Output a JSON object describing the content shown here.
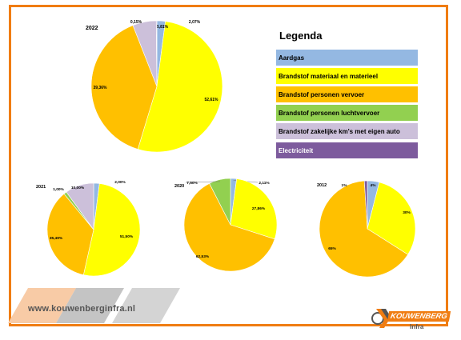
{
  "legend": {
    "title": "Legenda",
    "items": [
      {
        "label": "Aardgas",
        "color": "#94b8e2",
        "dark": false
      },
      {
        "label": "Brandstof materiaal en materieel",
        "color": "#ffff00",
        "dark": false
      },
      {
        "label": "Brandstof personen vervoer",
        "color": "#ffc000",
        "dark": false
      },
      {
        "label": "Brandstof personen luchtvervoer",
        "color": "#92d050",
        "dark": false
      },
      {
        "label": "Brandstof zakelijke km's met eigen auto",
        "color": "#ccc0da",
        "dark": false
      },
      {
        "label": "Electriciteit",
        "color": "#7d5b9d",
        "dark": true
      }
    ]
  },
  "footer": {
    "website": "www.kouwenberginfra.nl",
    "logo_name": "KOUWENBERG",
    "logo_sub": "Infra",
    "logo_icon": "k-logo-icon"
  },
  "chart_data": [
    {
      "type": "pie",
      "title": "2022",
      "slices": [
        {
          "category": "Aardgas",
          "value": 2.07,
          "label": "2,07%"
        },
        {
          "category": "Brandstof materiaal en materieel",
          "value": 52.61,
          "label": "52,61%"
        },
        {
          "category": "Brandstof personen vervoer",
          "value": 39.36,
          "label": "39,36%"
        },
        {
          "category": "Brandstof zakelijke km's met eigen auto",
          "value": 5.81,
          "label": "5,81%"
        },
        {
          "category": "Electriciteit",
          "value": 0.15,
          "label": "0,15%"
        }
      ]
    },
    {
      "type": "pie",
      "title": "2021",
      "slices": [
        {
          "category": "Aardgas",
          "value": 2.0,
          "label": "2,00%"
        },
        {
          "category": "Brandstof materiaal en materieel",
          "value": 51.5,
          "label": "51,50%"
        },
        {
          "category": "Brandstof personen vervoer",
          "value": 35.49,
          "label": "35,49%"
        },
        {
          "category": "Brandstof personen luchtvervoer",
          "value": 1.0,
          "label": "1,00%"
        },
        {
          "category": "Brandstof zakelijke km's met eigen auto",
          "value": 10.0,
          "label": "10,00%"
        }
      ]
    },
    {
      "type": "pie",
      "title": "2020",
      "slices": [
        {
          "category": "Aardgas",
          "value": 2.11,
          "label": "2,11%"
        },
        {
          "category": "Brandstof materiaal en materieel",
          "value": 27.86,
          "label": "27,86%"
        },
        {
          "category": "Brandstof personen vervoer",
          "value": 62.53,
          "label": "62,53%"
        },
        {
          "category": "Brandstof personen luchtvervoer",
          "value": 7.5,
          "label": "7,50%"
        }
      ]
    },
    {
      "type": "pie",
      "title": "2012",
      "slices": [
        {
          "category": "Aardgas",
          "value": 4,
          "label": "4%"
        },
        {
          "category": "Brandstof materiaal en materieel",
          "value": 30,
          "label": "30%"
        },
        {
          "category": "Brandstof personen vervoer",
          "value": 65,
          "label": "65%"
        },
        {
          "category": "Electriciteit",
          "value": 1,
          "label": "1%"
        }
      ]
    }
  ]
}
